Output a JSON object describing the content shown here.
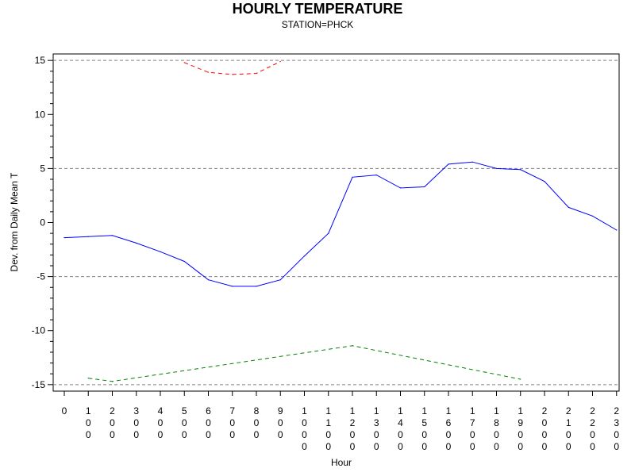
{
  "chart_data": {
    "type": "line",
    "title": "HOURLY TEMPERATURE",
    "subtitle": "STATION=PHCK",
    "xlabel": "Hour",
    "ylabel": "Dev. from Daily Mean T",
    "x": [
      0,
      100,
      200,
      300,
      400,
      500,
      600,
      700,
      800,
      900,
      1000,
      1100,
      1200,
      1300,
      1400,
      1500,
      1600,
      1700,
      1800,
      1900,
      2000,
      2100,
      2200,
      2300
    ],
    "x_tick_labels": [
      "0",
      "100",
      "200",
      "300",
      "400",
      "500",
      "600",
      "700",
      "800",
      "900",
      "1000",
      "1100",
      "1200",
      "1300",
      "1400",
      "1500",
      "1600",
      "1700",
      "1800",
      "1900",
      "2000",
      "2100",
      "2200",
      "2300"
    ],
    "ylim": [
      -15.6,
      15.6
    ],
    "y_ticks": [
      15,
      10,
      5,
      0,
      -5,
      -10,
      -15
    ],
    "y_tick_labels": [
      "15",
      "10",
      "5",
      "0",
      "-5",
      "-10",
      "-15"
    ],
    "reference_lines": [
      15,
      5,
      -5,
      -15
    ],
    "series": [
      {
        "color": "#0000ff",
        "style": "solid",
        "x": [
          0,
          100,
          200,
          300,
          400,
          500,
          600,
          700,
          800,
          900,
          1000,
          1100,
          1200,
          1300,
          1400,
          1500,
          1600,
          1700,
          1800,
          1900,
          2000,
          2100,
          2200,
          2300
        ],
        "values": [
          -1.4,
          -1.3,
          -1.2,
          -1.9,
          -2.7,
          -3.6,
          -5.3,
          -5.9,
          -5.9,
          -5.3,
          -3.1,
          -1.0,
          4.2,
          4.4,
          3.2,
          3.3,
          5.4,
          5.6,
          5.0,
          4.9,
          3.8,
          1.4,
          0.6,
          -0.7
        ]
      },
      {
        "color": "#ff0000",
        "style": "dashed",
        "x": [
          500,
          600,
          700,
          800,
          900
        ],
        "values": [
          14.8,
          13.9,
          13.7,
          13.8,
          14.9
        ]
      },
      {
        "color": "#008000",
        "style": "dashed",
        "x": [
          100,
          200,
          1200,
          1900
        ],
        "values": [
          -14.4,
          -14.7,
          -11.4,
          -14.5
        ]
      }
    ],
    "grid": false
  }
}
